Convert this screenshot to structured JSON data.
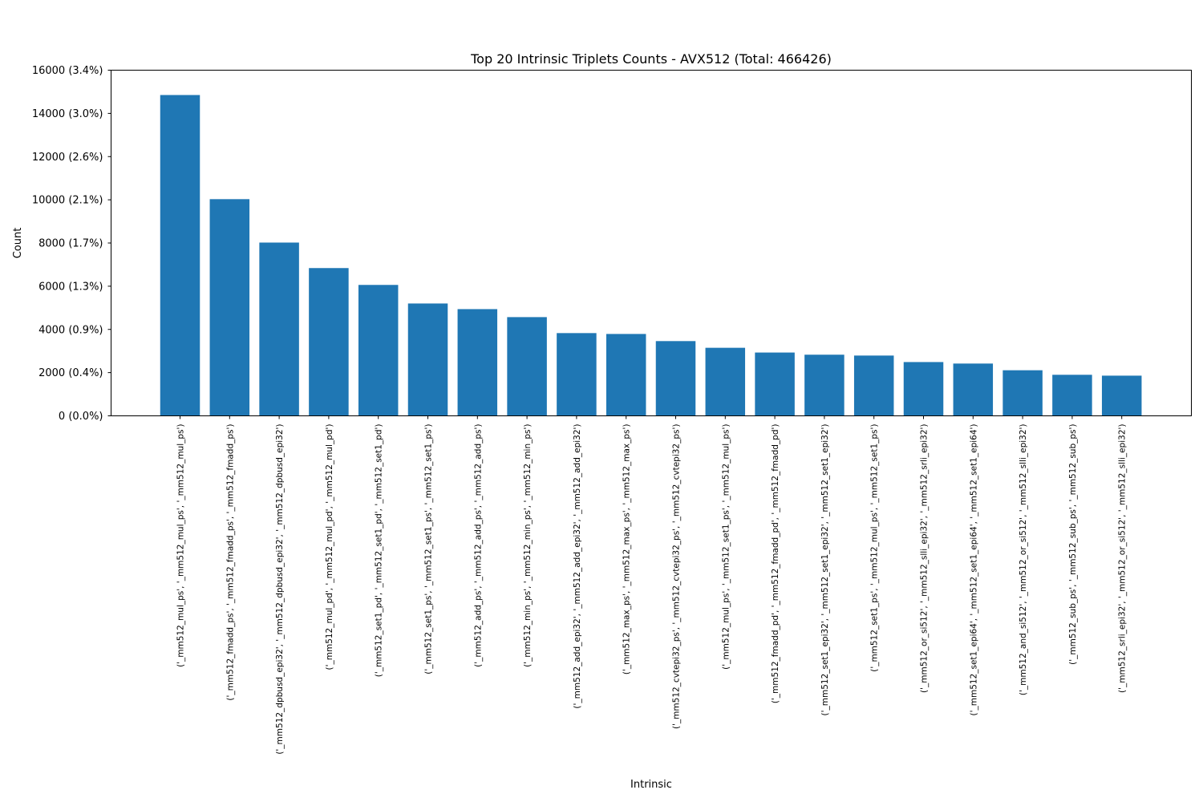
{
  "chart_data": {
    "type": "bar",
    "title": "Top 20 Intrinsic Triplets Counts - AVX512 (Total: 466426)",
    "xlabel": "Intrinsic",
    "ylabel": "Count",
    "ylim": [
      0,
      16000
    ],
    "yticks": [
      0,
      2000,
      4000,
      6000,
      8000,
      10000,
      12000,
      14000,
      16000
    ],
    "ytick_labels": [
      "0 (0.0%)",
      "2000 (0.4%)",
      "4000 (0.9%)",
      "6000 (1.3%)",
      "8000 (1.7%)",
      "10000 (2.1%)",
      "12000 (2.6%)",
      "14000 (3.0%)",
      "16000 (3.4%)"
    ],
    "grid": false,
    "bar_color": "#1f77b4",
    "categories": [
      "('_mm512_mul_ps', '_mm512_mul_ps', '_mm512_mul_ps')",
      "('_mm512_fmadd_ps', '_mm512_fmadd_ps', '_mm512_fmadd_ps')",
      "('_mm512_dpbusd_epi32', '_mm512_dpbusd_epi32', '_mm512_dpbusd_epi32')",
      "('_mm512_mul_pd', '_mm512_mul_pd', '_mm512_mul_pd')",
      "('_mm512_set1_pd', '_mm512_set1_pd', '_mm512_set1_pd')",
      "('_mm512_set1_ps', '_mm512_set1_ps', '_mm512_set1_ps')",
      "('_mm512_add_ps', '_mm512_add_ps', '_mm512_add_ps')",
      "('_mm512_min_ps', '_mm512_min_ps', '_mm512_min_ps')",
      "('_mm512_add_epi32', '_mm512_add_epi32', '_mm512_add_epi32')",
      "('_mm512_max_ps', '_mm512_max_ps', '_mm512_max_ps')",
      "('_mm512_cvtepi32_ps', '_mm512_cvtepi32_ps', '_mm512_cvtepi32_ps')",
      "('_mm512_mul_ps', '_mm512_set1_ps', '_mm512_mul_ps')",
      "('_mm512_fmadd_pd', '_mm512_fmadd_pd', '_mm512_fmadd_pd')",
      "('_mm512_set1_epi32', '_mm512_set1_epi32', '_mm512_set1_epi32')",
      "('_mm512_set1_ps', '_mm512_mul_ps', '_mm512_set1_ps')",
      "('_mm512_or_si512', '_mm512_slli_epi32', '_mm512_srli_epi32')",
      "('_mm512_set1_epi64', '_mm512_set1_epi64', '_mm512_set1_epi64')",
      "('_mm512_and_si512', '_mm512_or_si512', '_mm512_slli_epi32')",
      "('_mm512_sub_ps', '_mm512_sub_ps', '_mm512_sub_ps')",
      "('_mm512_srli_epi32', '_mm512_or_si512', '_mm512_slli_epi32')"
    ],
    "values": [
      14850,
      10030,
      8020,
      6840,
      6060,
      5200,
      4940,
      4570,
      3830,
      3790,
      3460,
      3150,
      2930,
      2830,
      2790,
      2490,
      2420,
      2110,
      1900,
      1860
    ]
  }
}
